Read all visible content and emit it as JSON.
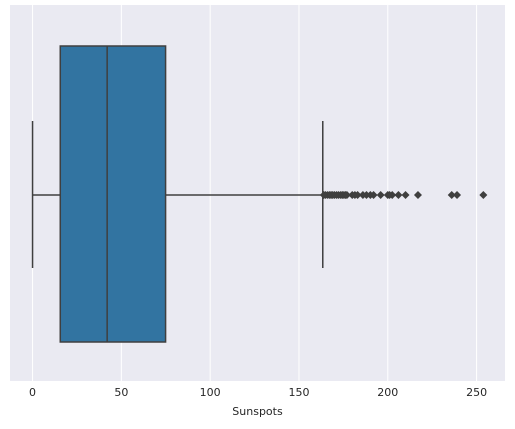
{
  "chart_data": {
    "type": "boxplot",
    "orientation": "horizontal",
    "xlabel": "Sunspots",
    "ylabel": "",
    "xlim": [
      -12.7,
      266
    ],
    "xticks": [
      0,
      50,
      100,
      150,
      200,
      250
    ],
    "grid": true,
    "box": {
      "whisker_low": 0,
      "q1": 15.6,
      "median": 42.0,
      "q3": 74.9,
      "whisker_high": 163.4
    },
    "outliers": [
      164.0,
      165.0,
      166.2,
      167.3,
      168.1,
      169.0,
      170.0,
      171.2,
      172.3,
      173.5,
      174.4,
      175.3,
      176.2,
      177.0,
      180.0,
      181.5,
      183.0,
      186.0,
      188.0,
      190.2,
      192.0,
      196.0,
      200.0,
      201.0,
      202.5,
      206.0,
      210.0,
      217.0,
      236.0,
      239.0,
      253.8
    ],
    "colors": {
      "box_fill": "#3274a1",
      "lines": "#3f3f3f",
      "background": "#eaeaf2",
      "grid": "#ffffff"
    }
  }
}
